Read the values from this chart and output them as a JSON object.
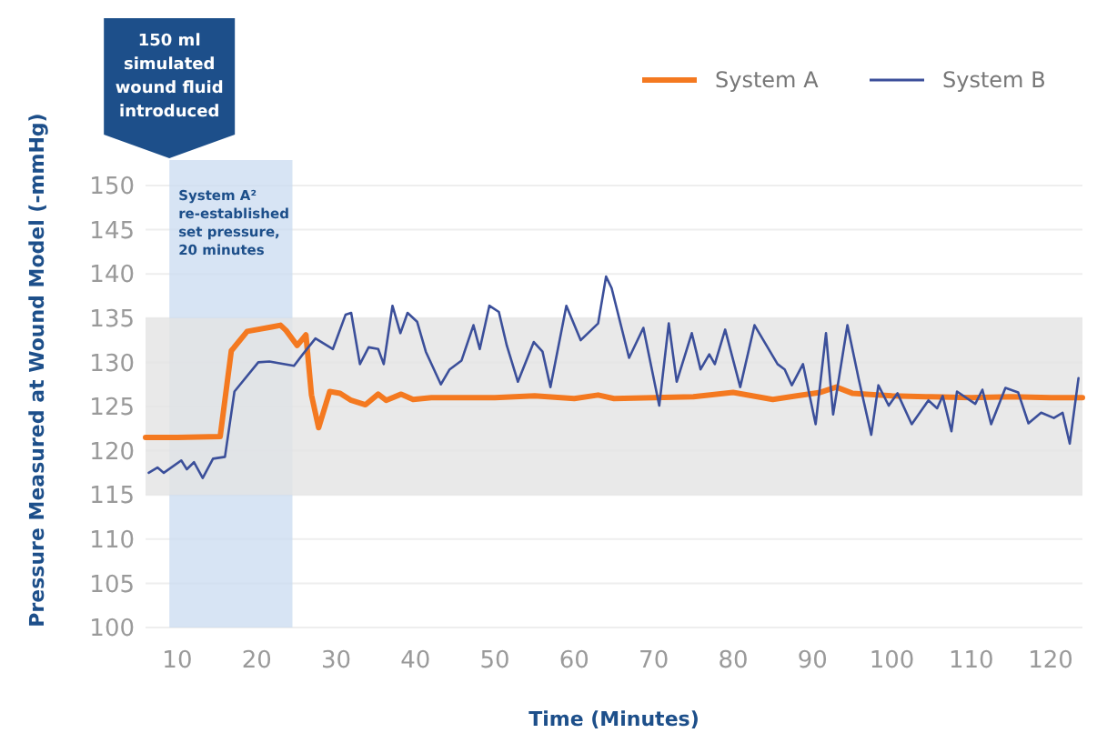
{
  "chart_data": {
    "type": "line",
    "xlabel": "Time (Minutes)",
    "ylabel": "Pressure Measured at Wound Model (-mmHg)",
    "xlim": [
      6,
      124
    ],
    "xticks": [
      10,
      20,
      30,
      40,
      50,
      60,
      70,
      80,
      90,
      100,
      110,
      120
    ],
    "ylim": [
      100,
      150
    ],
    "yticks": [
      100,
      105,
      110,
      115,
      120,
      125,
      130,
      135,
      140,
      145,
      150
    ],
    "grid": "y",
    "legend": "top right",
    "series": [
      {
        "name": "System A",
        "color": "#f47920",
        "x": [
          6,
          10,
          15.4,
          16.8,
          18.8,
          21.9,
          23,
          23.7,
          25.1,
          26.2,
          26.9,
          27.8,
          29.2,
          30.5,
          31.9,
          33.7,
          35.3,
          36.3,
          38.2,
          39.7,
          42,
          46,
          50,
          55,
          60,
          63,
          65,
          70,
          75,
          80,
          85,
          88,
          91,
          93,
          95,
          100,
          105,
          110,
          115,
          120,
          124
        ],
        "values": [
          121.5,
          121.5,
          121.6,
          131.3,
          133.5,
          134,
          134.2,
          133.6,
          131.9,
          133.1,
          126.3,
          122.6,
          126.7,
          126.5,
          125.7,
          125.2,
          126.4,
          125.7,
          126.4,
          125.8,
          126,
          126,
          126,
          126.2,
          125.9,
          126.3,
          125.9,
          126,
          126.1,
          126.6,
          125.8,
          126.2,
          126.6,
          127.2,
          126.5,
          126.2,
          126.1,
          126,
          126.1,
          126,
          126
        ]
      },
      {
        "name": "System B",
        "color": "#3b4f9a",
        "x": [
          6.4,
          7.5,
          8.3,
          10.5,
          11.2,
          12.1,
          13.2,
          14.5,
          16,
          17.2,
          20.2,
          21.6,
          24.7,
          25.8,
          27.4,
          29.6,
          31.2,
          31.9,
          33,
          34.1,
          35.3,
          36,
          37.1,
          38.1,
          39,
          40.2,
          41.3,
          43.2,
          44.3,
          45.8,
          47.3,
          48.1,
          49.3,
          50.5,
          51.5,
          52.9,
          54.9,
          56,
          57,
          59,
          60.8,
          63,
          64,
          64.7,
          66.9,
          68.7,
          70.7,
          71.9,
          72.9,
          74.8,
          75.9,
          77,
          77.7,
          79,
          80.9,
          82.7,
          85.6,
          86.5,
          87.4,
          88.8,
          90.4,
          91.7,
          92.6,
          94.4,
          95.8,
          97.4,
          98.3,
          99.6,
          100.7,
          102.5,
          104.6,
          105.7,
          106.4,
          107.5,
          108.2,
          110.5,
          111.4,
          112.5,
          114.3,
          115.9,
          117.2,
          118.8,
          120.4,
          121.5,
          122.4,
          123.5
        ],
        "values": [
          117.5,
          118.1,
          117.5,
          118.9,
          117.9,
          118.7,
          116.9,
          119.1,
          119.3,
          126.7,
          130,
          130.1,
          129.6,
          130.9,
          132.7,
          131.5,
          135.4,
          135.6,
          129.8,
          131.7,
          131.5,
          129.8,
          136.4,
          133.3,
          135.6,
          134.6,
          131.2,
          127.5,
          129.2,
          130.2,
          134.2,
          131.5,
          136.4,
          135.7,
          131.9,
          127.8,
          132.3,
          131.2,
          127.2,
          136.4,
          132.5,
          134.4,
          139.7,
          138.4,
          130.5,
          133.9,
          125.1,
          134.4,
          127.8,
          133.3,
          129.2,
          130.9,
          129.8,
          133.7,
          127.2,
          134.2,
          129.8,
          129.2,
          127.4,
          129.8,
          123,
          133.3,
          124.1,
          134.2,
          128.2,
          121.8,
          127.4,
          125.1,
          126.5,
          123,
          125.7,
          124.8,
          126.2,
          122.2,
          126.7,
          125.3,
          126.9,
          123,
          127.1,
          126.6,
          123.1,
          124.3,
          123.7,
          124.3,
          120.8,
          128.2
        ]
      }
    ],
    "bands": [
      {
        "axis": "x",
        "from": 9,
        "to": 24.5,
        "label": "System A² re-established set pressure, 20 minutes",
        "color": "#c9dbf0"
      },
      {
        "axis": "y",
        "from": 115,
        "to": 135,
        "color": "#e3e3e3"
      }
    ],
    "annotations": [
      "150 ml simulated wound fluid introduced"
    ]
  }
}
